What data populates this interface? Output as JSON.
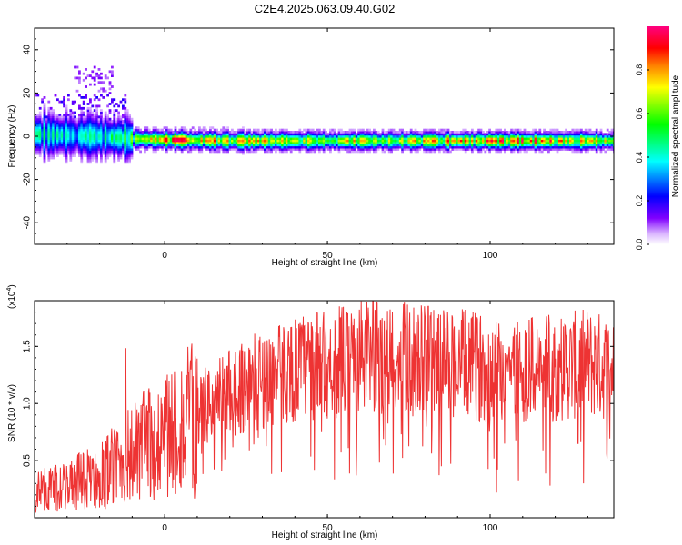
{
  "title": "C2E4.2025.063.09.40.G02",
  "chart_data": [
    {
      "type": "heatmap",
      "xlabel": "Height of straight line (km)",
      "ylabel": "Frequency (Hz)",
      "xlim": [
        -40,
        138
      ],
      "ylim": [
        -50,
        50
      ],
      "xticks": [
        0,
        50,
        100
      ],
      "yticks": [
        -40,
        -20,
        0,
        20,
        40
      ],
      "colorbar": {
        "label": "Normalized spectral amplitude",
        "range": [
          0,
          1
        ],
        "ticks": [
          "0.0",
          "0.2",
          "0.4",
          "0.6",
          "0.8"
        ],
        "colormap": [
          "#ffffff",
          "#cc99ff",
          "#8000ff",
          "#0000ff",
          "#00ffff",
          "#00ff00",
          "#ffff00",
          "#ff8000",
          "#ff0000",
          "#ff0080"
        ]
      },
      "ridge": {
        "description_points_x": [
          -40,
          -30,
          -20,
          -10,
          0,
          20,
          50,
          80,
          110,
          138
        ],
        "center_frequency_hz": [
          1,
          0.5,
          0,
          -1,
          -1.5,
          -2,
          -2,
          -2,
          -2,
          -2
        ],
        "peak_amplitude": [
          0.5,
          0.45,
          0.45,
          0.6,
          0.95,
          0.8,
          0.75,
          0.8,
          0.95,
          0.7
        ]
      }
    },
    {
      "type": "line",
      "xlabel": "Height of straight line (km)",
      "ylabel": "SNR (10 * v/v)",
      "y_multiplier_label": "(x10",
      "y_multiplier_exp": "4",
      "xlim": [
        -40,
        138
      ],
      "ylim": [
        0,
        19000
      ],
      "xticks": [
        0,
        50,
        100
      ],
      "yticks": [
        5000,
        10000,
        15000
      ],
      "yticklabels": [
        "0.5",
        "1.0",
        "1.5"
      ],
      "color": "#ee3333",
      "envelope": {
        "x": [
          -40,
          -30,
          -20,
          -10,
          0,
          10,
          20,
          30,
          40,
          50,
          60,
          70,
          80,
          90,
          100,
          110,
          120,
          130,
          138
        ],
        "y": [
          2500,
          3000,
          4000,
          6000,
          8000,
          9500,
          11500,
          12500,
          13500,
          14000,
          14500,
          14500,
          14200,
          14000,
          13500,
          13500,
          13500,
          14000,
          13500
        ]
      },
      "peaks": [
        {
          "x": -12,
          "y": 14800
        },
        {
          "x": 64,
          "y": 19000
        },
        {
          "x": 81,
          "y": 18500
        },
        {
          "x": 54,
          "y": 17500
        }
      ],
      "dips": [
        {
          "x": 46,
          "y": 4200
        },
        {
          "x": 102,
          "y": 2200
        },
        {
          "x": 9,
          "y": 3800
        },
        {
          "x": 127,
          "y": 6500
        }
      ]
    }
  ]
}
